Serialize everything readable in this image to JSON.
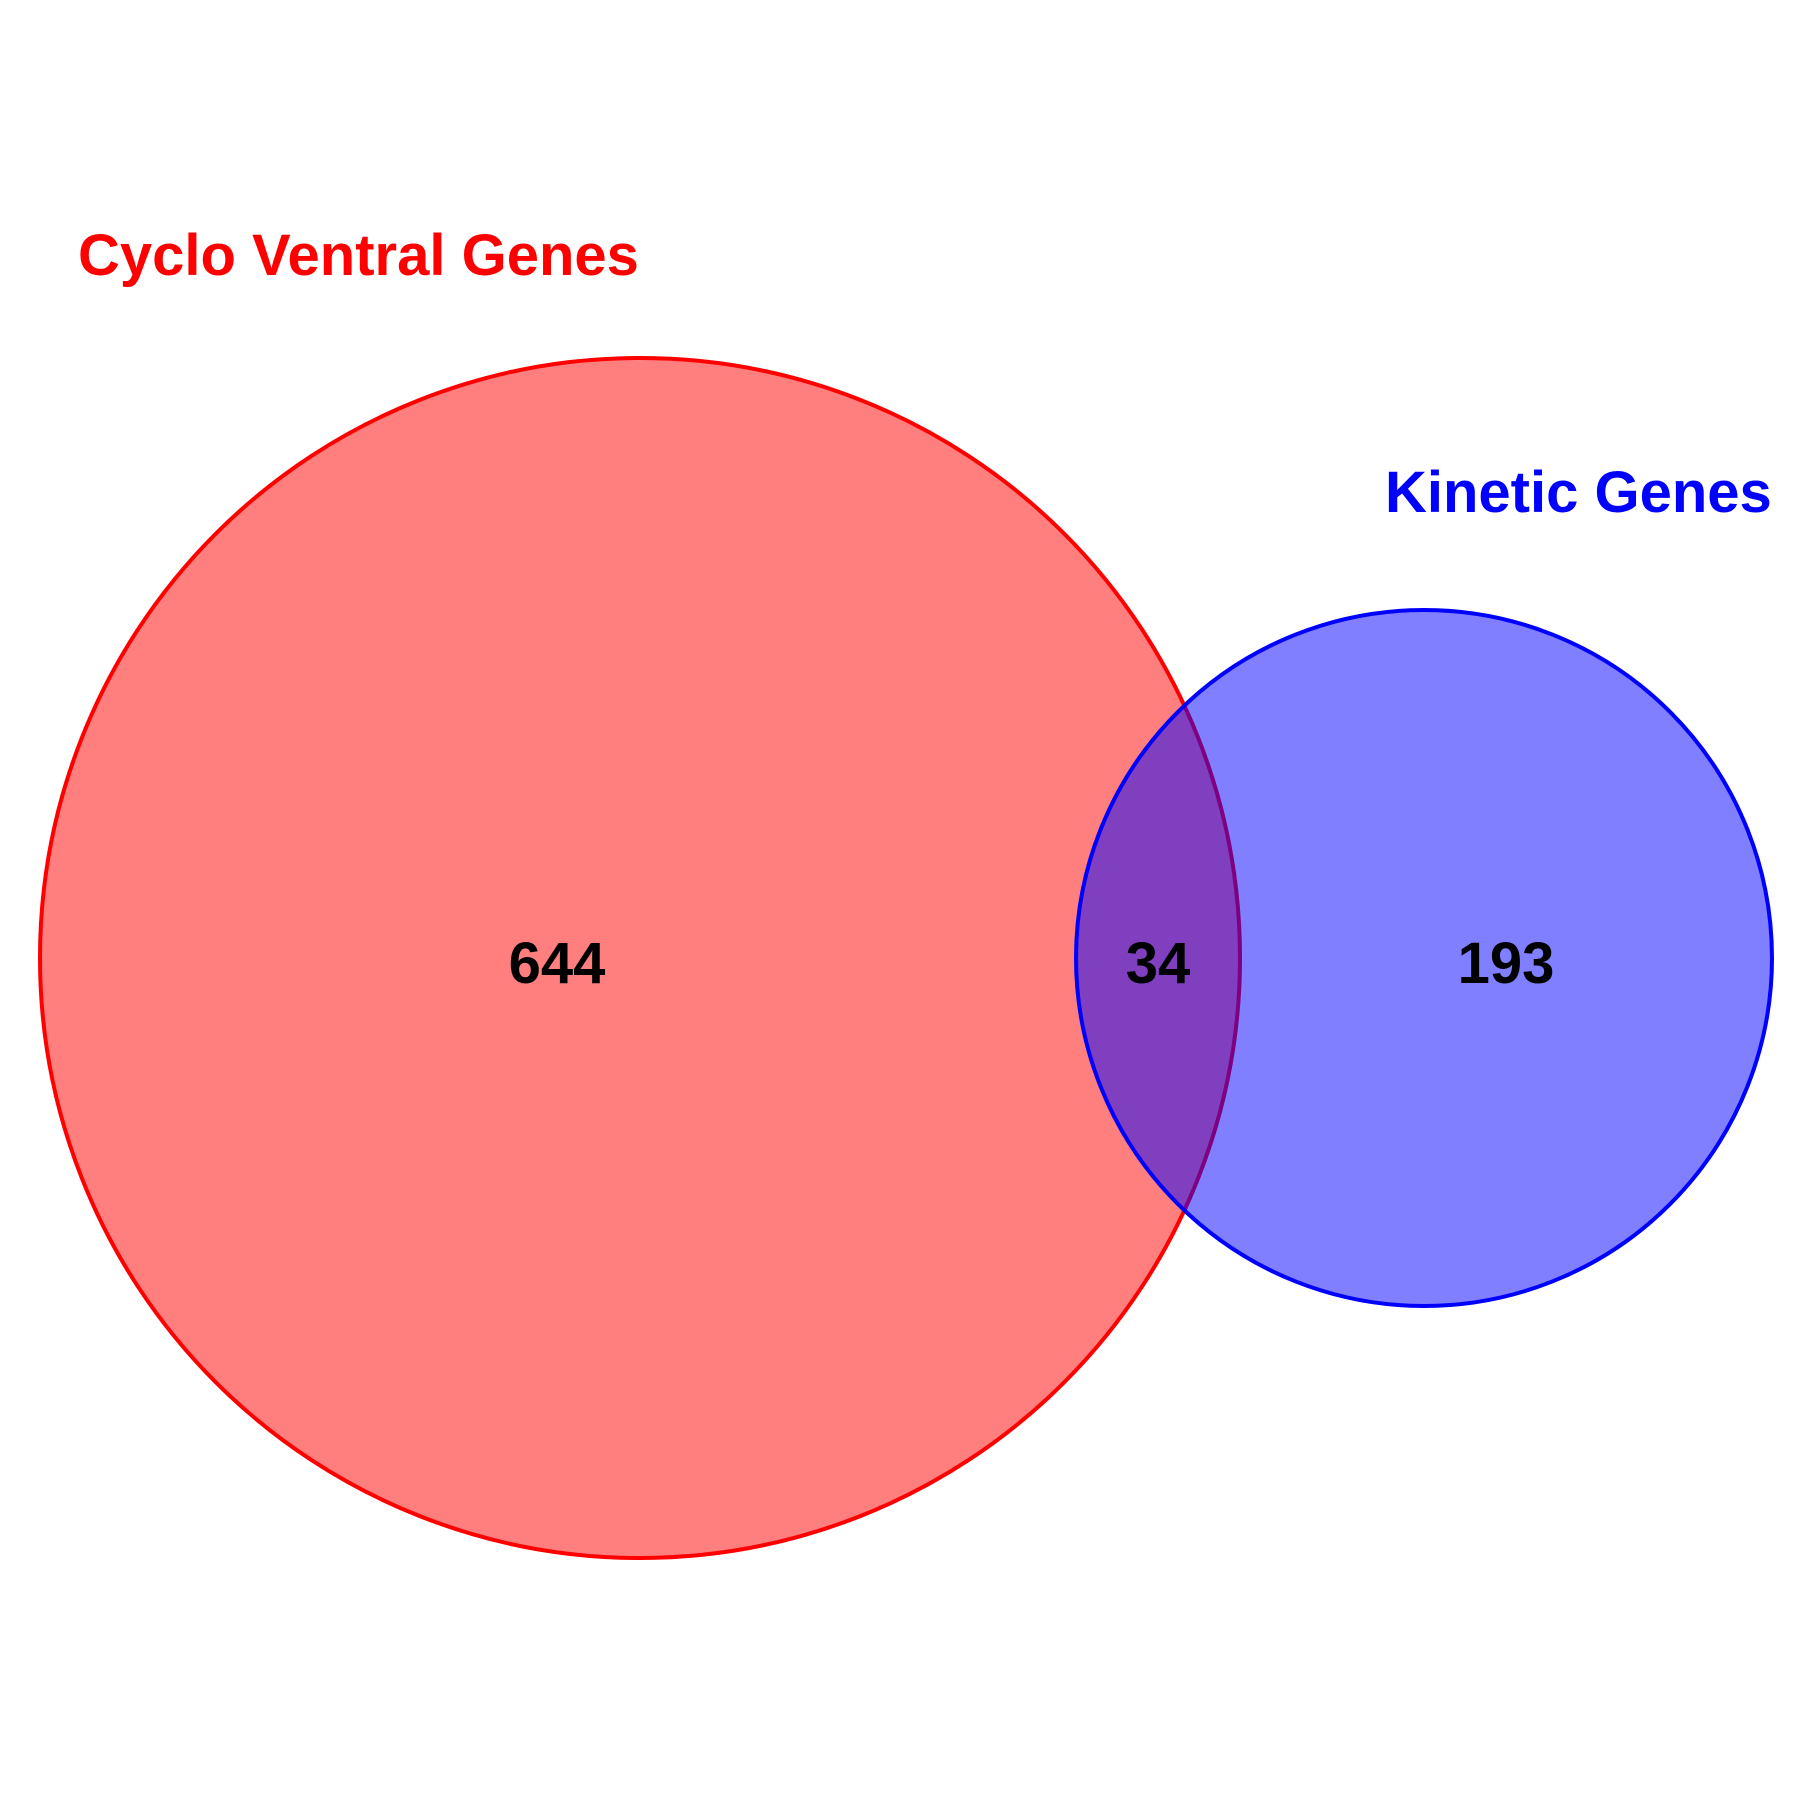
{
  "sets": [
    {
      "label": "Cyclo Ventral Genes",
      "stroke_color": "#FF0000",
      "fill_color": "#FF0000"
    },
    {
      "label": "Kinetic Genes",
      "stroke_color": "#0000FF",
      "fill_color": "#0000FF"
    }
  ],
  "counts": {
    "left_only": "644",
    "overlap": "34",
    "right_only": "193"
  }
}
